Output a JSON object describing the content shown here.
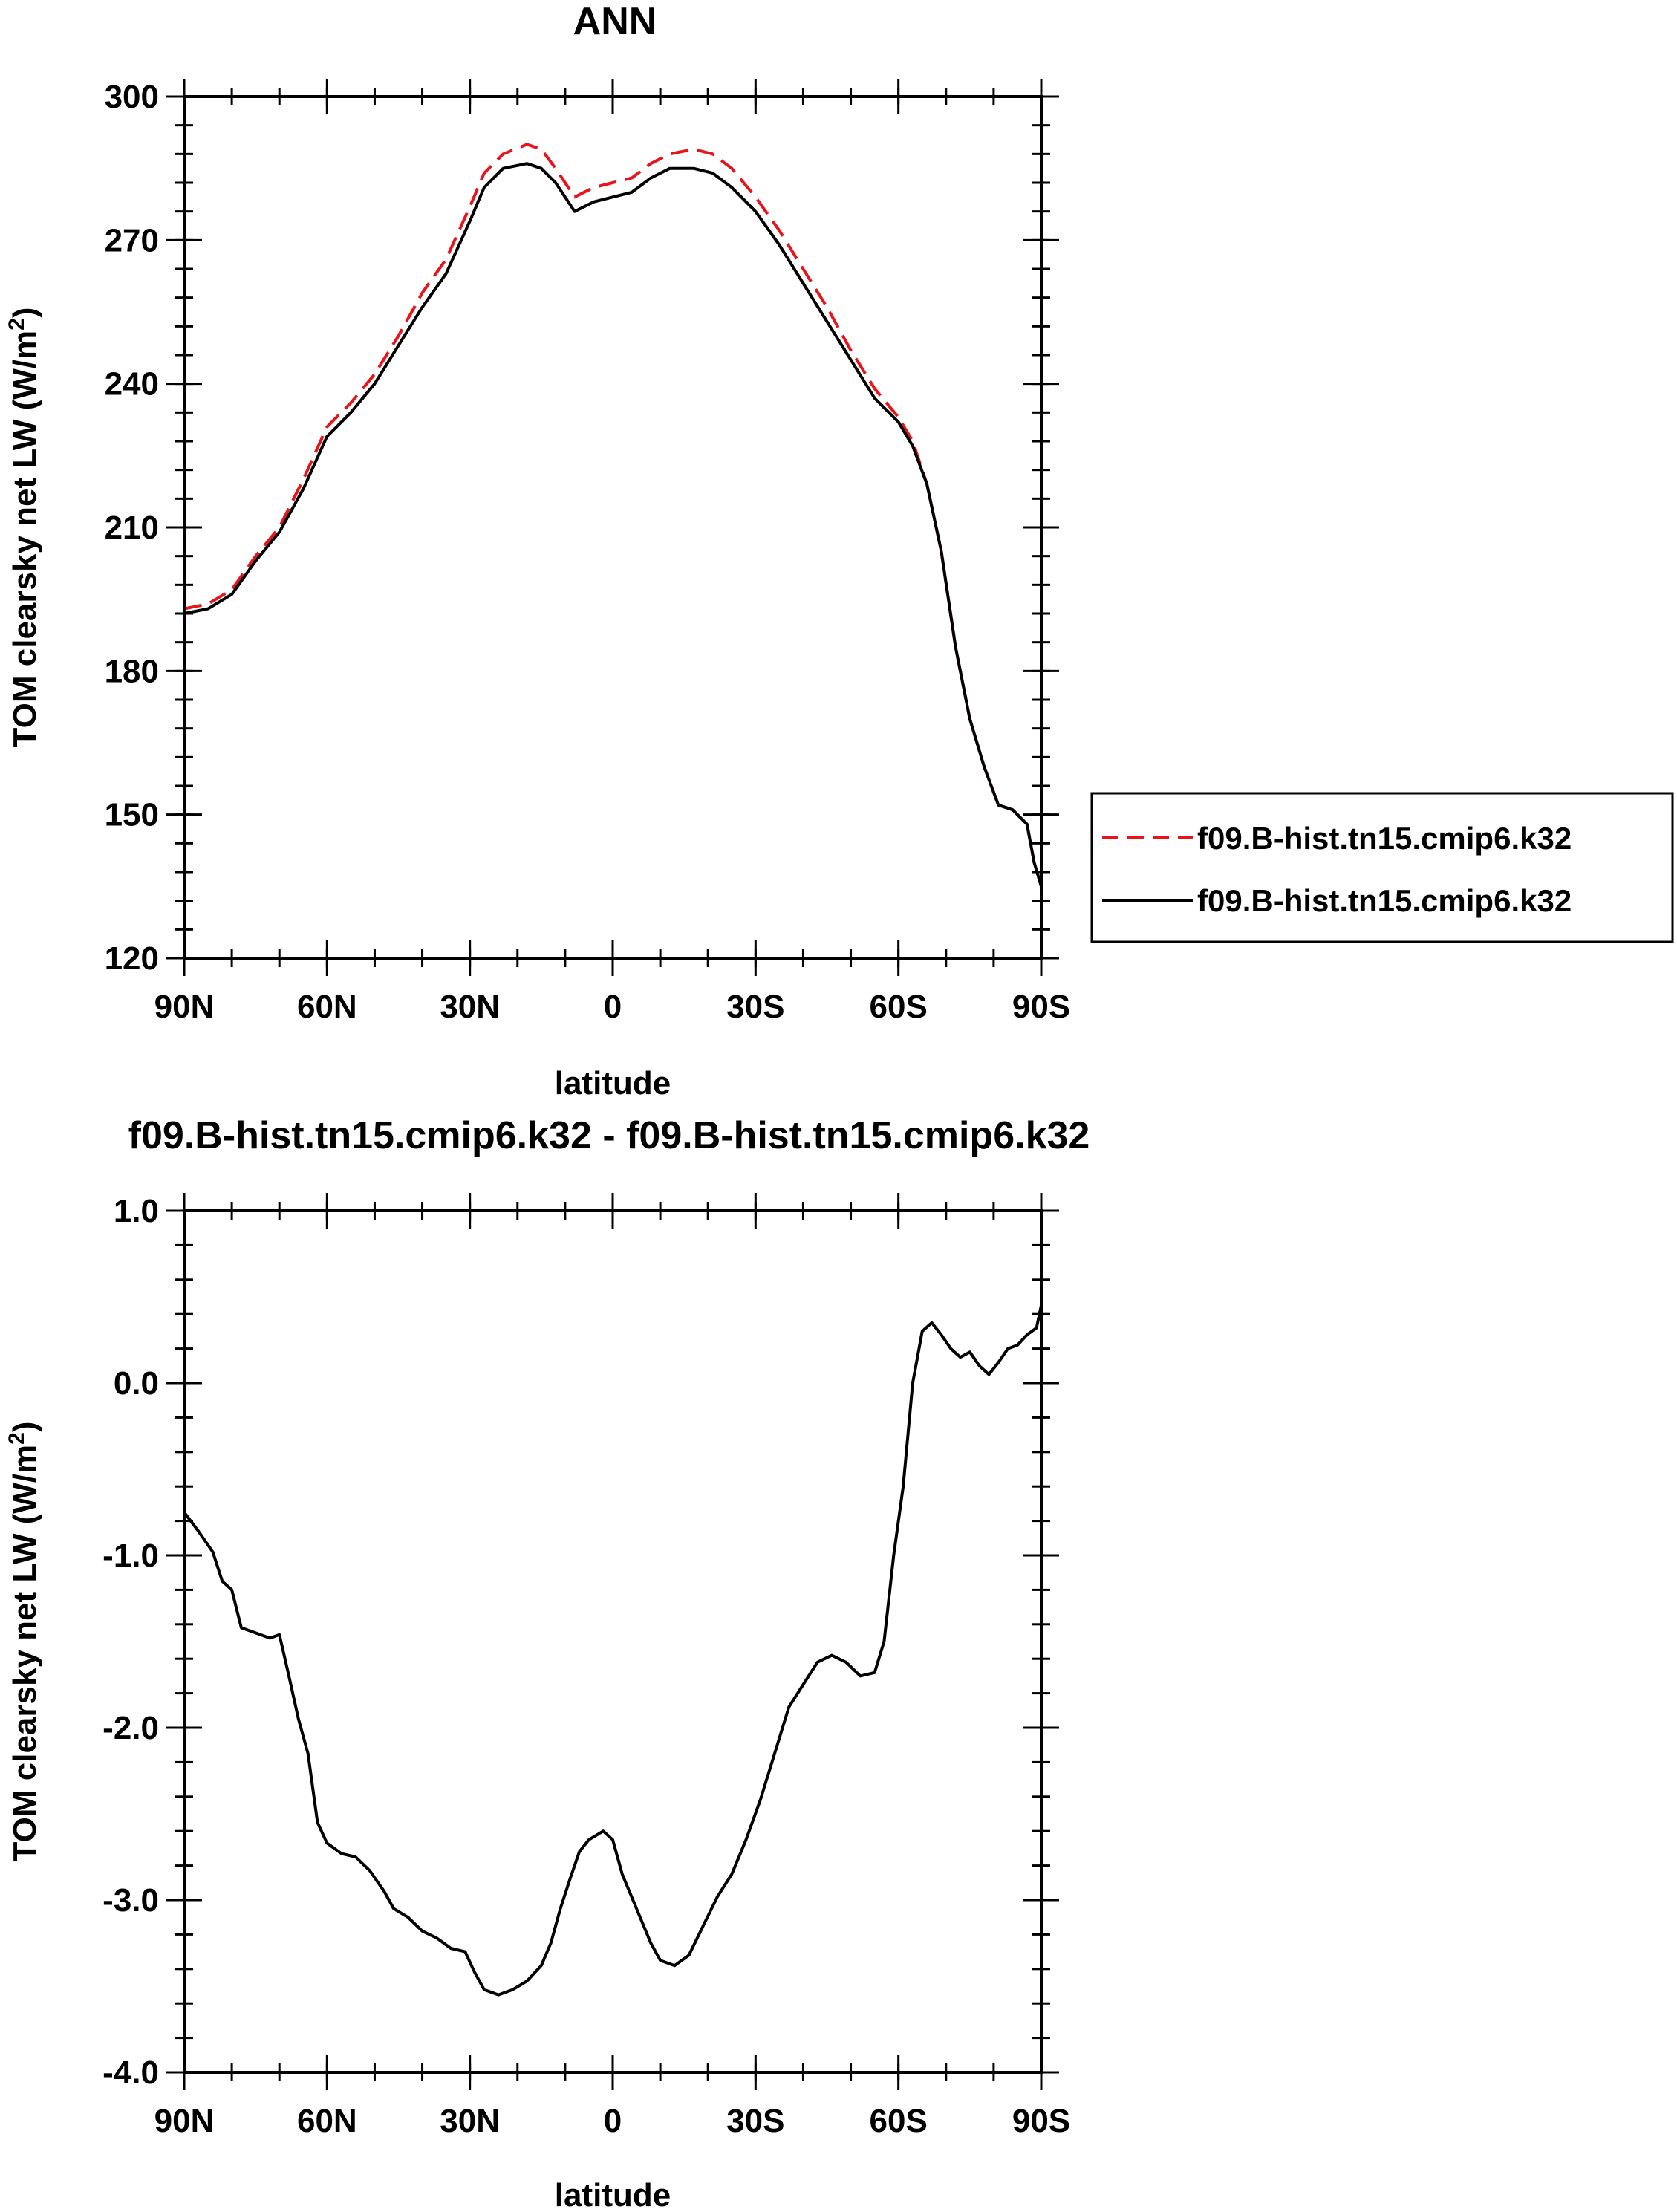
{
  "chart_data": [
    {
      "type": "line",
      "title": "ANN",
      "xlabel": "latitude",
      "ylabel_main": "TOM clearsky net LW (W/m",
      "ylabel_sup": "2",
      "ylabel_close": ")",
      "xlim": [
        90,
        -90
      ],
      "ylim": [
        120,
        300
      ],
      "xticks": [
        {
          "value": 90,
          "label": "90N"
        },
        {
          "value": 60,
          "label": "60N"
        },
        {
          "value": 30,
          "label": "30N"
        },
        {
          "value": 0,
          "label": "0"
        },
        {
          "value": -30,
          "label": "30S"
        },
        {
          "value": -60,
          "label": "60S"
        },
        {
          "value": -90,
          "label": "90S"
        }
      ],
      "yticks": [
        {
          "value": 300,
          "label": "300"
        },
        {
          "value": 270,
          "label": "270"
        },
        {
          "value": 240,
          "label": "240"
        },
        {
          "value": 210,
          "label": "210"
        },
        {
          "value": 180,
          "label": "180"
        },
        {
          "value": 150,
          "label": "150"
        },
        {
          "value": 120,
          "label": "120"
        }
      ],
      "grid": false,
      "legend_position": "right",
      "series": [
        {
          "name": "f09.B-hist.tn15.cmip6.k32",
          "color": "#e8141b",
          "dash": "dashed",
          "points": [
            [
              90,
              193
            ],
            [
              85,
              194
            ],
            [
              80,
              197
            ],
            [
              75,
              204
            ],
            [
              70,
              210
            ],
            [
              65,
              220
            ],
            [
              60,
              231
            ],
            [
              55,
              236
            ],
            [
              50,
              242
            ],
            [
              45,
              250
            ],
            [
              40,
              259
            ],
            [
              35,
              266
            ],
            [
              30,
              277
            ],
            [
              27,
              284
            ],
            [
              23,
              288
            ],
            [
              18,
              290
            ],
            [
              15,
              289
            ],
            [
              12,
              285
            ],
            [
              8,
              279
            ],
            [
              4,
              281
            ],
            [
              0,
              282
            ],
            [
              -4,
              283
            ],
            [
              -8,
              286
            ],
            [
              -12,
              288
            ],
            [
              -17,
              289
            ],
            [
              -21,
              288
            ],
            [
              -25,
              285
            ],
            [
              -30,
              279
            ],
            [
              -35,
              272
            ],
            [
              -40,
              264
            ],
            [
              -45,
              256
            ],
            [
              -50,
              247
            ],
            [
              -55,
              239
            ],
            [
              -60,
              233
            ],
            [
              -63,
              228
            ],
            [
              -66,
              219
            ],
            [
              -69,
              205
            ],
            [
              -72,
              185
            ],
            [
              -75,
              170
            ],
            [
              -78,
              160
            ],
            [
              -81,
              152
            ],
            [
              -84,
              151
            ],
            [
              -87,
              148
            ],
            [
              -88.5,
              140
            ],
            [
              -90,
              135
            ]
          ]
        },
        {
          "name": "f09.B-hist.tn15.cmip6.k32",
          "color": "#000000",
          "dash": "solid",
          "points": [
            [
              90,
              192
            ],
            [
              85,
              193
            ],
            [
              80,
              196
            ],
            [
              75,
              203
            ],
            [
              70,
              209
            ],
            [
              65,
              218
            ],
            [
              60,
              229
            ],
            [
              55,
              234
            ],
            [
              50,
              240
            ],
            [
              45,
              248
            ],
            [
              40,
              256
            ],
            [
              35,
              263
            ],
            [
              30,
              274
            ],
            [
              27,
              281
            ],
            [
              23,
              285
            ],
            [
              18,
              286
            ],
            [
              15,
              285
            ],
            [
              12,
              282
            ],
            [
              8,
              276
            ],
            [
              4,
              278
            ],
            [
              0,
              279
            ],
            [
              -4,
              280
            ],
            [
              -8,
              283
            ],
            [
              -12,
              285
            ],
            [
              -17,
              285
            ],
            [
              -21,
              284
            ],
            [
              -25,
              281
            ],
            [
              -30,
              276
            ],
            [
              -35,
              269
            ],
            [
              -40,
              261
            ],
            [
              -45,
              253
            ],
            [
              -50,
              245
            ],
            [
              -55,
              237
            ],
            [
              -60,
              232
            ],
            [
              -63,
              227
            ],
            [
              -66,
              219
            ],
            [
              -69,
              205
            ],
            [
              -72,
              185
            ],
            [
              -75,
              170
            ],
            [
              -78,
              160
            ],
            [
              -81,
              152
            ],
            [
              -84,
              151
            ],
            [
              -87,
              148
            ],
            [
              -88.5,
              140
            ],
            [
              -90,
              135
            ]
          ]
        }
      ]
    },
    {
      "type": "line",
      "title": "f09.B-hist.tn15.cmip6.k32 - f09.B-hist.tn15.cmip6.k32",
      "xlabel": "latitude",
      "ylabel_main": "TOM clearsky net LW (W/m",
      "ylabel_sup": "2",
      "ylabel_close": ")",
      "xlim": [
        90,
        -90
      ],
      "ylim": [
        -4.0,
        1.0
      ],
      "xticks": [
        {
          "value": 90,
          "label": "90N"
        },
        {
          "value": 60,
          "label": "60N"
        },
        {
          "value": 30,
          "label": "30N"
        },
        {
          "value": 0,
          "label": "0"
        },
        {
          "value": -30,
          "label": "30S"
        },
        {
          "value": -60,
          "label": "60S"
        },
        {
          "value": -90,
          "label": "90S"
        }
      ],
      "yticks": [
        {
          "value": 1.0,
          "label": "1.0"
        },
        {
          "value": 0.0,
          "label": "0.0"
        },
        {
          "value": -1.0,
          "label": "-1.0"
        },
        {
          "value": -2.0,
          "label": "-2.0"
        },
        {
          "value": -3.0,
          "label": "-3.0"
        },
        {
          "value": -4.0,
          "label": "-4.0"
        }
      ],
      "grid": false,
      "series": [
        {
          "color": "#000000",
          "dash": "solid",
          "points": [
            [
              90,
              -0.75
            ],
            [
              87,
              -0.86
            ],
            [
              84,
              -0.98
            ],
            [
              82,
              -1.15
            ],
            [
              80,
              -1.2
            ],
            [
              78,
              -1.42
            ],
            [
              75,
              -1.45
            ],
            [
              72,
              -1.48
            ],
            [
              70,
              -1.46
            ],
            [
              68,
              -1.7
            ],
            [
              66,
              -1.95
            ],
            [
              64,
              -2.15
            ],
            [
              62,
              -2.55
            ],
            [
              60,
              -2.67
            ],
            [
              57,
              -2.73
            ],
            [
              54,
              -2.75
            ],
            [
              51,
              -2.83
            ],
            [
              48,
              -2.95
            ],
            [
              46,
              -3.05
            ],
            [
              43,
              -3.1
            ],
            [
              40,
              -3.18
            ],
            [
              37,
              -3.22
            ],
            [
              34,
              -3.28
            ],
            [
              31,
              -3.3
            ],
            [
              29,
              -3.42
            ],
            [
              27,
              -3.52
            ],
            [
              24,
              -3.55
            ],
            [
              21,
              -3.52
            ],
            [
              18,
              -3.47
            ],
            [
              15,
              -3.38
            ],
            [
              13,
              -3.25
            ],
            [
              11,
              -3.05
            ],
            [
              9,
              -2.88
            ],
            [
              7,
              -2.72
            ],
            [
              5,
              -2.65
            ],
            [
              2,
              -2.6
            ],
            [
              0,
              -2.65
            ],
            [
              -2,
              -2.85
            ],
            [
              -5,
              -3.05
            ],
            [
              -8,
              -3.25
            ],
            [
              -10,
              -3.35
            ],
            [
              -13,
              -3.38
            ],
            [
              -16,
              -3.32
            ],
            [
              -19,
              -3.15
            ],
            [
              -22,
              -2.98
            ],
            [
              -25,
              -2.85
            ],
            [
              -28,
              -2.65
            ],
            [
              -31,
              -2.42
            ],
            [
              -34,
              -2.15
            ],
            [
              -37,
              -1.88
            ],
            [
              -40,
              -1.75
            ],
            [
              -43,
              -1.62
            ],
            [
              -46,
              -1.58
            ],
            [
              -49,
              -1.62
            ],
            [
              -52,
              -1.7
            ],
            [
              -55,
              -1.68
            ],
            [
              -57,
              -1.5
            ],
            [
              -59,
              -1.0
            ],
            [
              -61,
              -0.6
            ],
            [
              -63,
              0.0
            ],
            [
              -65,
              0.3
            ],
            [
              -67,
              0.35
            ],
            [
              -69,
              0.28
            ],
            [
              -71,
              0.2
            ],
            [
              -73,
              0.15
            ],
            [
              -75,
              0.18
            ],
            [
              -77,
              0.1
            ],
            [
              -79,
              0.05
            ],
            [
              -81,
              0.12
            ],
            [
              -83,
              0.2
            ],
            [
              -85,
              0.22
            ],
            [
              -87,
              0.28
            ],
            [
              -89,
              0.32
            ],
            [
              -90,
              0.45
            ]
          ]
        }
      ]
    }
  ]
}
